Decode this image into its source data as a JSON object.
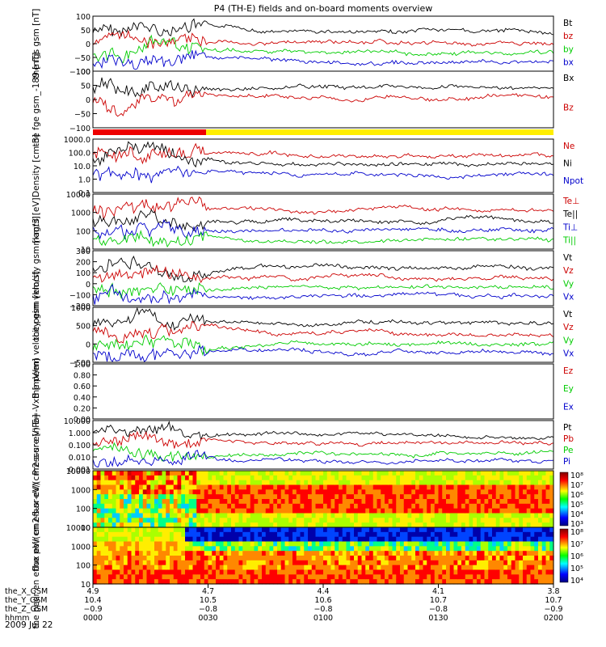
{
  "title": "P4 (TH-E) fields and on-board moments overview",
  "date": "2009 Jul 22",
  "colors": {
    "black": "#000000",
    "red": "#cc0000",
    "green": "#00cc00",
    "blue": "#0000cc",
    "yellow": "#ffee00"
  },
  "chart_data": [
    {
      "type": "line",
      "ylabel": "the fgs gsm [nT]",
      "ylim": [
        -100,
        100
      ],
      "ticks": [
        "100",
        "50",
        "0",
        "−50",
        "−100"
      ],
      "legend": [
        {
          "name": "Bt",
          "color": "black"
        },
        {
          "name": "bz",
          "color": "red"
        },
        {
          "name": "by",
          "color": "green"
        },
        {
          "name": "bx",
          "color": "blue"
        }
      ]
    },
    {
      "type": "line",
      "ylabel": "the fge gsm_-189 [nT]",
      "ylim": [
        -150,
        70
      ],
      "ticks": [
        "100",
        "50",
        "0",
        "−50",
        "−100"
      ],
      "legend": [
        {
          "name": "Bx",
          "color": "black"
        },
        {
          "name": "Bz",
          "color": "red"
        }
      ]
    },
    {
      "type": "line",
      "ylabel": "Density [cm-3]",
      "scale": "log",
      "ylim": [
        0.1,
        1000
      ],
      "ticks": [
        "1000.0",
        "100.0",
        "10.0",
        "1.0",
        "0.1"
      ],
      "legend": [
        {
          "name": "Ne",
          "color": "red"
        },
        {
          "name": "Ni",
          "color": "black"
        },
        {
          "name": "Npot",
          "color": "blue"
        }
      ]
    },
    {
      "type": "line",
      "ylabel": "magt3 [eV]",
      "scale": "log",
      "ylim": [
        10,
        10000
      ],
      "ticks": [
        "10000",
        "1000",
        "100",
        "10"
      ],
      "legend": [
        {
          "name": "Te⊥",
          "color": "red"
        },
        {
          "name": "Te||",
          "color": "black"
        },
        {
          "name": "Ti⊥",
          "color": "blue"
        },
        {
          "name": "Ti||",
          "color": "green"
        }
      ]
    },
    {
      "type": "line",
      "ylabel": "the peim velocity gsm [km/s]",
      "ylim": [
        -200,
        300
      ],
      "ticks": [
        "300",
        "200",
        "100",
        "0",
        "−100",
        "−200"
      ],
      "legend": [
        {
          "name": "Vt",
          "color": "black"
        },
        {
          "name": "Vz",
          "color": "red"
        },
        {
          "name": "Vy",
          "color": "green"
        },
        {
          "name": "Vx",
          "color": "blue"
        }
      ]
    },
    {
      "type": "line",
      "ylabel": "the peem velocity gsm [km/s]",
      "ylim": [
        -600,
        1100
      ],
      "ticks": [
        "1000",
        "500",
        "0",
        "−500"
      ],
      "legend": [
        {
          "name": "Vt",
          "color": "black"
        },
        {
          "name": "Vz",
          "color": "red"
        },
        {
          "name": "Vy",
          "color": "green"
        },
        {
          "name": "Vx",
          "color": "blue"
        }
      ]
    },
    {
      "type": "line",
      "ylabel": "E=-VxB [mV/m]",
      "ylim": [
        0,
        1
      ],
      "ticks": [
        "1.00",
        "0.80",
        "0.60",
        "0.40",
        "0.20",
        "0.00"
      ],
      "legend": [
        {
          "name": "Ez",
          "color": "red"
        },
        {
          "name": "Ey",
          "color": "green"
        },
        {
          "name": "Ex",
          "color": "blue"
        }
      ]
    },
    {
      "type": "line",
      "ylabel": "Pressure [nPa]",
      "scale": "log",
      "ylim": [
        0.001,
        10
      ],
      "ticks": [
        "10.000",
        "1.000",
        "0.100",
        "0.010",
        "0.001"
      ],
      "legend": [
        {
          "name": "Pt",
          "color": "black"
        },
        {
          "name": "Pb",
          "color": "red"
        },
        {
          "name": "Pe",
          "color": "green"
        },
        {
          "name": "Pi",
          "color": "blue"
        }
      ]
    },
    {
      "type": "heatmap",
      "ylabel": "the peir en eflux eV/(cm2-s-sr-eV)",
      "scale": "log",
      "ylim": [
        10,
        10000
      ],
      "ticks": [
        "10000",
        "1000",
        "100",
        "10"
      ],
      "colorbar": [
        "10⁸",
        "10⁷",
        "10⁶",
        "10⁵",
        "10⁴",
        "10³"
      ]
    },
    {
      "type": "heatmap",
      "ylabel": "the peer en eflux eV/(cm2-s-sr-eV)",
      "scale": "log",
      "ylim": [
        10,
        10000
      ],
      "ticks": [
        "10000",
        "1000",
        "100",
        "10"
      ],
      "colorbar": [
        "10⁸",
        "10⁷",
        "10⁶",
        "10⁵",
        "10⁴"
      ]
    }
  ],
  "x_axis": {
    "row_labels": [
      "the_X_GSM",
      "the_Y_GSM",
      "the_Z_GSM",
      "hhmm"
    ],
    "columns": [
      {
        "values": [
          "4.9",
          "10.4",
          "−0.9",
          "0000"
        ]
      },
      {
        "values": [
          "4.7",
          "10.5",
          "−0.8",
          "0030"
        ]
      },
      {
        "values": [
          "4.4",
          "10.6",
          "−0.8",
          "0100"
        ]
      },
      {
        "values": [
          "4.1",
          "10.7",
          "−0.8",
          "0130"
        ]
      },
      {
        "values": [
          "3.8",
          "10.7",
          "−0.9",
          "0200"
        ]
      }
    ]
  }
}
